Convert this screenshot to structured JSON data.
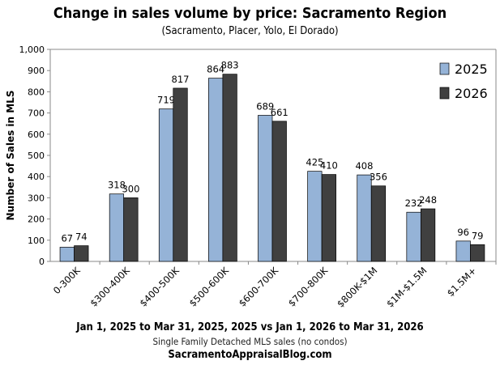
{
  "chart_data": {
    "type": "bar",
    "title": "Change in sales volume by price: Sacramento Region",
    "subtitle": "(Sacramento, Placer, Yolo, El Dorado)",
    "xlabel": "Jan 1, 2025 to Mar 31, 2025, 2025 vs Jan 1, 2026 to Mar 31, 2026",
    "note": "Single Family Detached MLS sales (no condos)",
    "source": "SacramentoAppraisalBlog.com",
    "ylabel": "Number of Sales in MLS",
    "ylim": [
      0,
      1000
    ],
    "yticks": [
      0,
      100,
      200,
      300,
      400,
      500,
      600,
      700,
      800,
      900,
      1000
    ],
    "ytick_labels": [
      "0",
      "100",
      "200",
      "300",
      "400",
      "500",
      "600",
      "700",
      "800",
      "900",
      "1,000"
    ],
    "grid": false,
    "legend_position": "top-right",
    "categories": [
      "0-300K",
      "$300-400K",
      "$400-500K",
      "$500-600K",
      "$600-700K",
      "$700-800K",
      "$800K-$1M",
      "$1M-$1.5M",
      "$1.5M+"
    ],
    "series": [
      {
        "name": "2025",
        "color": "#95b3d7",
        "values": [
          67,
          318,
          719,
          864,
          689,
          425,
          408,
          232,
          96
        ]
      },
      {
        "name": "2026",
        "color": "#404040",
        "values": [
          74,
          300,
          817,
          883,
          661,
          410,
          356,
          248,
          79
        ]
      }
    ]
  }
}
